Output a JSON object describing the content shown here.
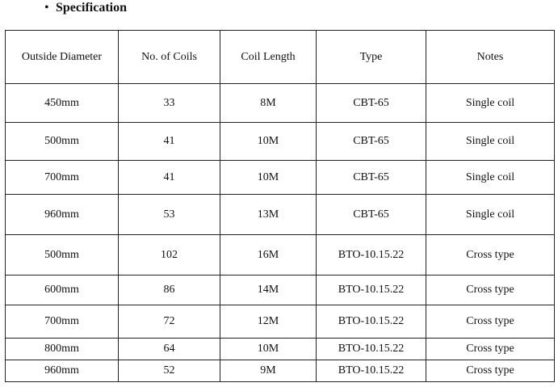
{
  "header": {
    "title": "Specification"
  },
  "table": {
    "columns": [
      "Outside Diameter",
      "No. of Coils",
      "Coil Length",
      "Type",
      "Notes"
    ],
    "rows": [
      [
        "450mm",
        "33",
        "8M",
        "CBT-65",
        "Single coil"
      ],
      [
        "500mm",
        "41",
        "10M",
        "CBT-65",
        "Single coil"
      ],
      [
        "700mm",
        "41",
        "10M",
        "CBT-65",
        "Single coil"
      ],
      [
        "960mm",
        "53",
        "13M",
        "CBT-65",
        "Single coil"
      ],
      [
        "500mm",
        "102",
        "16M",
        "BTO-10.15.22",
        "Cross type"
      ],
      [
        "600mm",
        "86",
        "14M",
        "BTO-10.15.22",
        "Cross type"
      ],
      [
        "700mm",
        "72",
        "12M",
        "BTO-10.15.22",
        "Cross type"
      ],
      [
        "800mm",
        "64",
        "10M",
        "BTO-10.15.22",
        "Cross type"
      ],
      [
        "960mm",
        "52",
        "9M",
        "BTO-10.15.22",
        "Cross type"
      ]
    ]
  }
}
